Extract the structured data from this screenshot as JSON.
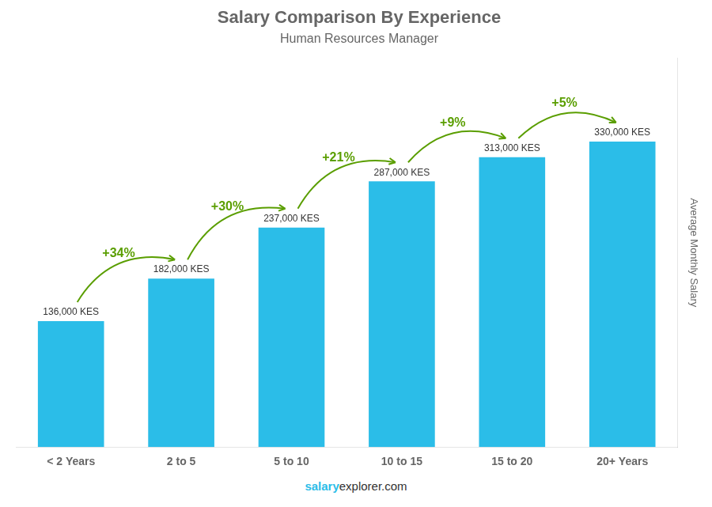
{
  "chart_data": {
    "type": "bar",
    "title": "Salary Comparison By Experience",
    "subtitle": "Human Resources Manager",
    "ylabel": "Average Monthly Salary",
    "categories": [
      "< 2 Years",
      "2 to 5",
      "5 to 10",
      "10 to 15",
      "15 to 20",
      "20+ Years"
    ],
    "values": [
      136000,
      182000,
      237000,
      287000,
      313000,
      330000
    ],
    "value_labels": [
      "136,000 KES",
      "182,000 KES",
      "237,000 KES",
      "287,000 KES",
      "313,000 KES",
      "330,000 KES"
    ],
    "data_labels": true,
    "annotations": [
      "+34%",
      "+30%",
      "+21%",
      "+9%",
      "+5%"
    ],
    "footer": [
      "salary",
      "explorer.com"
    ],
    "color": "#2BBDE8",
    "ylim": [
      0,
      420000
    ],
    "tick_labels": "x",
    "grid": false
  }
}
